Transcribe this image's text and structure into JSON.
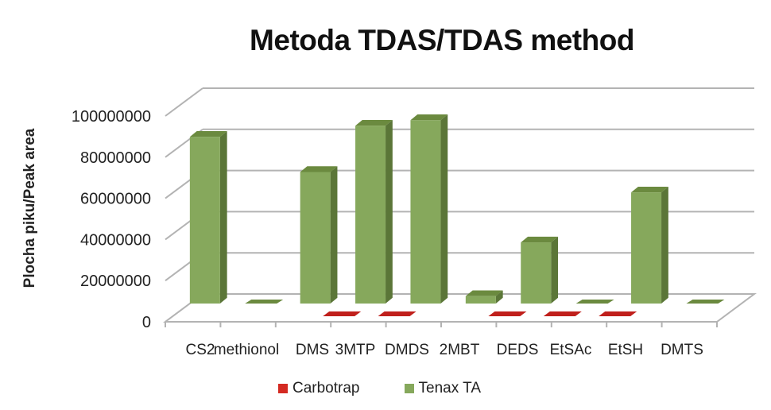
{
  "chart_data": {
    "type": "bar",
    "subtype": "3d-clustered-column",
    "title": "Metoda TDAS/TDAS method",
    "xlabel": "",
    "ylabel": "Plocha piku/Peak area",
    "ylim": [
      0,
      100000000
    ],
    "yticks": [
      "0",
      "20000000",
      "40000000",
      "60000000",
      "80000000",
      "100000000"
    ],
    "grid": true,
    "legend_position": "bottom",
    "categories": [
      "CS2",
      "methionol",
      "DMS",
      "3MTP",
      "DMDS",
      "2MBT",
      "DEDS",
      "EtSAc",
      "EtSH",
      "DMTS"
    ],
    "series": [
      {
        "name": "Carbotrap",
        "color": "#c0201c",
        "values": [
          0,
          0,
          0,
          0,
          0,
          0,
          0,
          0,
          0,
          0
        ]
      },
      {
        "name": "Tenax TA",
        "color": "#7fa350",
        "values": [
          90000000,
          0,
          71000000,
          96000000,
          99000000,
          4000000,
          33000000,
          0,
          60000000,
          0
        ]
      }
    ]
  },
  "legend": {
    "items": [
      {
        "label": "Carbotrap",
        "color": "#c0201c"
      },
      {
        "label": "Tenax TA",
        "color": "#7fa350"
      }
    ]
  }
}
